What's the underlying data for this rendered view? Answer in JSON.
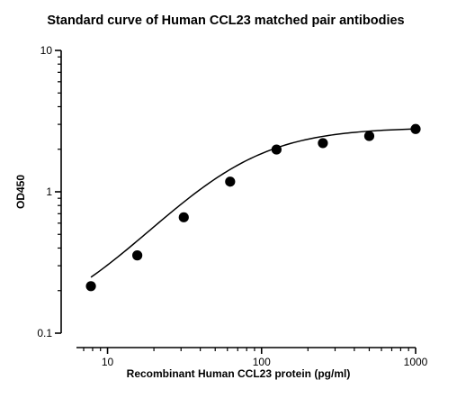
{
  "chart_data": {
    "type": "scatter",
    "title": "Standard curve of Human CCL23 matched pair antibodies",
    "xlabel": "Recombinant Human CCL23 protein (pg/ml)",
    "ylabel": "OD450",
    "x_scale": "log",
    "y_scale": "log",
    "xlim": [
      5,
      1000
    ],
    "ylim": [
      0.1,
      10
    ],
    "x_ticks": [
      {
        "value": 10,
        "label": "10"
      },
      {
        "value": 100,
        "label": "100"
      },
      {
        "value": 1000,
        "label": "1000"
      }
    ],
    "y_ticks": [
      {
        "value": 0.1,
        "label": "0.1"
      },
      {
        "value": 1,
        "label": "1"
      },
      {
        "value": 10,
        "label": "10"
      }
    ],
    "grid": false,
    "legend": "none",
    "series": [
      {
        "x": [
          7.8,
          15.6,
          31.25,
          62.5,
          125,
          250,
          500,
          1000
        ],
        "y": [
          0.215,
          0.355,
          0.66,
          1.18,
          1.99,
          2.21,
          2.48,
          2.78
        ],
        "marker": "filled-circle",
        "color": "#000000"
      }
    ],
    "fit_curve": {
      "model": "four-parameter logistic",
      "bottom": 0.1,
      "top": 2.85,
      "ec50": 65,
      "hill": 1.35,
      "color": "#000000"
    }
  }
}
